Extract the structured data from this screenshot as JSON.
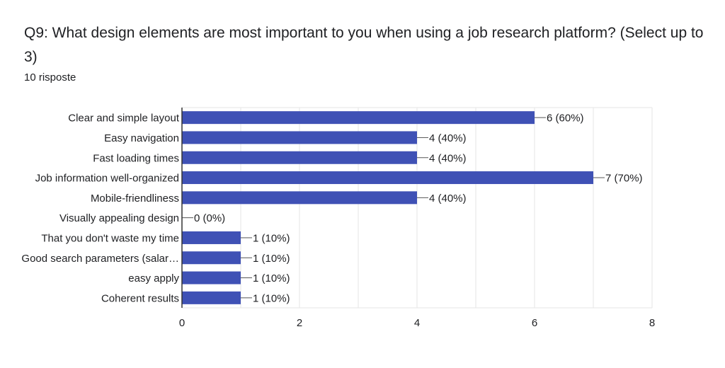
{
  "question": {
    "title": "Q9: What design elements are most important to you when using a job research platform? (Select up to 3)",
    "responses": "10 risposte"
  },
  "colors": {
    "bar": "#3f51b5",
    "grid": "#e6e6e6",
    "axis": "#333333",
    "text": "#202124"
  },
  "chart_data": {
    "type": "bar",
    "orientation": "horizontal",
    "categories": [
      "Clear and simple layout",
      "Easy navigation",
      "Fast loading times",
      "Job information well-organized",
      "Mobile-friendliness",
      "Visually appealing design",
      "That you don't waste my time",
      "Good search parameters (salar…",
      "easy apply",
      "Coherent results"
    ],
    "values": [
      6,
      4,
      4,
      7,
      4,
      0,
      1,
      1,
      1,
      1
    ],
    "data_labels": [
      "6 (60%)",
      "4 (40%)",
      "4 (40%)",
      "7 (70%)",
      "4 (40%)",
      "0 (0%)",
      "1 (10%)",
      "1 (10%)",
      "1 (10%)",
      "1 (10%)"
    ],
    "xlim": [
      0,
      8
    ],
    "xticks": [
      0,
      2,
      4,
      6,
      8
    ],
    "grid": true
  }
}
